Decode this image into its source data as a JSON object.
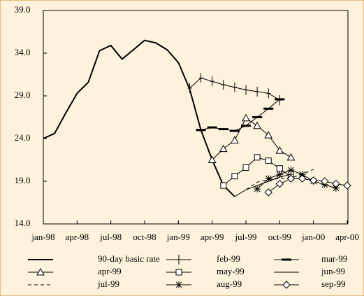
{
  "chart_data": {
    "type": "line",
    "categories": [
      "jan-98",
      null,
      null,
      "apr-98",
      null,
      null,
      "jul-98",
      null,
      null,
      "oct-98",
      null,
      null,
      "jan-99",
      null,
      null,
      "apr-99",
      null,
      null,
      "jul-99",
      null,
      null,
      "oct-99",
      null,
      null,
      "jan-00",
      null,
      null,
      "apr-00"
    ],
    "ylim": [
      14,
      39
    ],
    "yticks": [
      {
        "value": 14,
        "label": "14.0"
      },
      {
        "value": 19,
        "label": "19.0"
      },
      {
        "value": 24,
        "label": "24.0"
      },
      {
        "value": 29,
        "label": "29.0"
      },
      {
        "value": 34,
        "label": "34.0"
      },
      {
        "value": 39,
        "label": "39.0"
      }
    ],
    "series": [
      {
        "name": "90-day basic rate",
        "color": "#000000",
        "marker": "none",
        "width": 2,
        "values": [
          24.0,
          24.6,
          27.0,
          29.3,
          30.6,
          34.3,
          34.9,
          33.3,
          34.4,
          35.5,
          35.2,
          34.4,
          32.9,
          29.8,
          25.0,
          21.5,
          18.5,
          17.2,
          null,
          null,
          null,
          null,
          null,
          null,
          null,
          null,
          null,
          null
        ]
      },
      {
        "name": "feb-99",
        "color": "#000000",
        "marker": "plus",
        "values": [
          null,
          null,
          null,
          null,
          null,
          null,
          null,
          null,
          null,
          null,
          null,
          null,
          null,
          29.9,
          31.1,
          30.7,
          30.3,
          30.0,
          29.7,
          29.5,
          29.3,
          28.5,
          null,
          null,
          null,
          null,
          null,
          null
        ]
      },
      {
        "name": "mar-99",
        "color": "#000000",
        "marker": "dash",
        "values": [
          null,
          null,
          null,
          null,
          null,
          null,
          null,
          null,
          null,
          null,
          null,
          null,
          null,
          null,
          25.0,
          25.3,
          25.1,
          24.9,
          25.5,
          26.5,
          27.5,
          28.6,
          null,
          null,
          null,
          null,
          null,
          null
        ]
      },
      {
        "name": "apr-99",
        "color": "#000000",
        "marker": "triangle",
        "values": [
          null,
          null,
          null,
          null,
          null,
          null,
          null,
          null,
          null,
          null,
          null,
          null,
          null,
          null,
          null,
          21.5,
          22.8,
          23.8,
          26.4,
          25.5,
          24.4,
          22.6,
          21.8,
          null,
          null,
          null,
          null,
          null
        ]
      },
      {
        "name": "may-99",
        "color": "#000000",
        "marker": "square",
        "values": [
          null,
          null,
          null,
          null,
          null,
          null,
          null,
          null,
          null,
          null,
          null,
          null,
          null,
          null,
          null,
          null,
          18.5,
          19.6,
          20.6,
          21.8,
          21.4,
          20.5,
          19.5,
          null,
          null,
          null,
          null,
          null
        ]
      },
      {
        "name": "jun-99",
        "color": "#000000",
        "marker": "none",
        "values": [
          null,
          null,
          null,
          null,
          null,
          null,
          null,
          null,
          null,
          null,
          null,
          null,
          null,
          null,
          null,
          null,
          null,
          17.2,
          18.0,
          18.5,
          19.0,
          19.5,
          19.8,
          null,
          null,
          null,
          null,
          null
        ]
      },
      {
        "name": "jul-99",
        "color": "#000000",
        "marker": "none",
        "dashed": true,
        "values": [
          null,
          null,
          null,
          null,
          null,
          null,
          null,
          null,
          null,
          null,
          null,
          null,
          null,
          null,
          null,
          null,
          null,
          null,
          18.0,
          18.9,
          19.2,
          19.3,
          19.4,
          19.8,
          20.4,
          null,
          null,
          null
        ]
      },
      {
        "name": "aug-99",
        "color": "#000000",
        "marker": "star",
        "values": [
          null,
          null,
          null,
          null,
          null,
          null,
          null,
          null,
          null,
          null,
          null,
          null,
          null,
          null,
          null,
          null,
          null,
          null,
          null,
          18.1,
          19.3,
          19.8,
          20.3,
          19.8,
          19.0,
          18.6,
          18.2,
          null
        ]
      },
      {
        "name": "sep-99",
        "color": "#000000",
        "marker": "diamond",
        "values": [
          null,
          null,
          null,
          null,
          null,
          null,
          null,
          null,
          null,
          null,
          null,
          null,
          null,
          null,
          null,
          null,
          null,
          null,
          null,
          null,
          17.7,
          18.7,
          19.3,
          19.3,
          19.1,
          19.0,
          18.7,
          18.5
        ]
      }
    ]
  }
}
